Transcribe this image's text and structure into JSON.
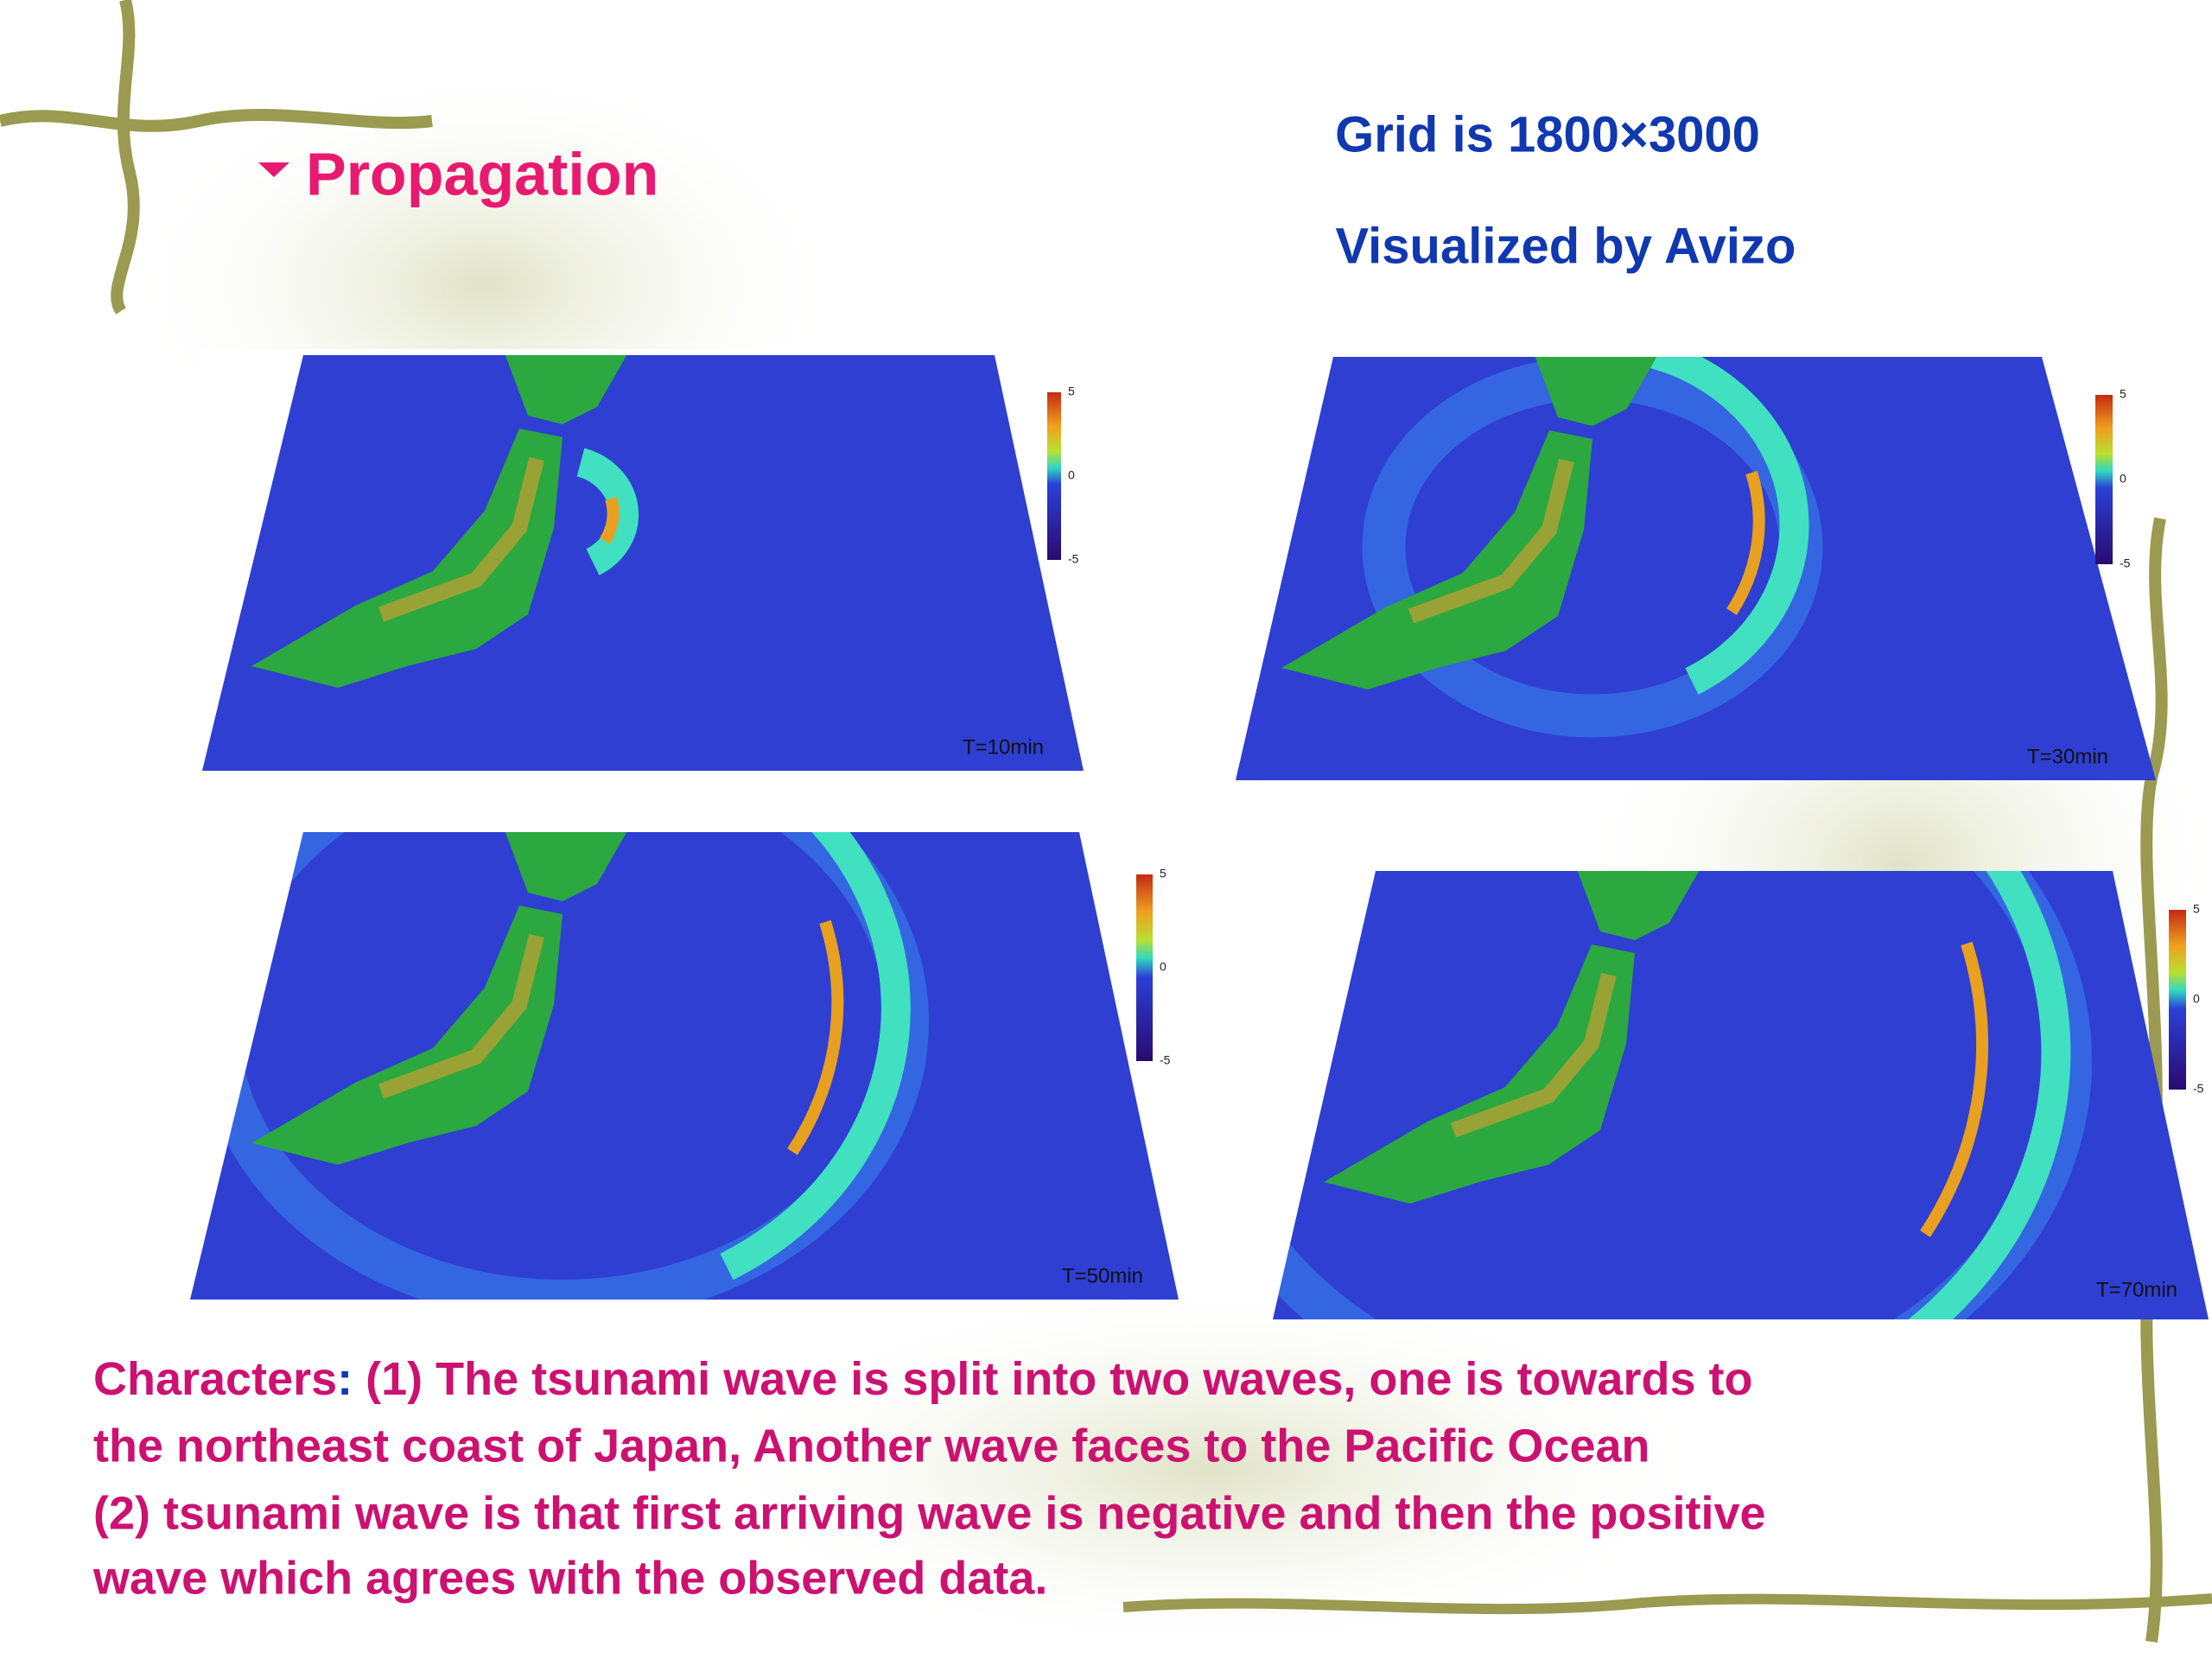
{
  "header": {
    "title": "Propagation",
    "grid": "Grid is  1800×3000",
    "tool": "Visualized by Avizo"
  },
  "panels": [
    {
      "time": "T=10min",
      "scale": [
        "5",
        "0",
        "-5"
      ]
    },
    {
      "time": "T=30min",
      "scale": [
        "5",
        "0",
        "-5"
      ]
    },
    {
      "time": "T=50min",
      "scale": [
        "5",
        "0",
        "-5"
      ]
    },
    {
      "time": "T=70min",
      "scale": [
        "5",
        "0",
        "-5"
      ]
    }
  ],
  "caption": {
    "label": "Characters",
    "separator": ":",
    "lines": [
      " (1) The tsunami wave is split into two waves, one is towards to",
      "the northeast coast of Japan, Another wave faces to the Pacific Ocean",
      "(2) tsunami wave is that first arriving wave is negative and then the positive",
      "wave which agrees with the observed data."
    ]
  }
}
